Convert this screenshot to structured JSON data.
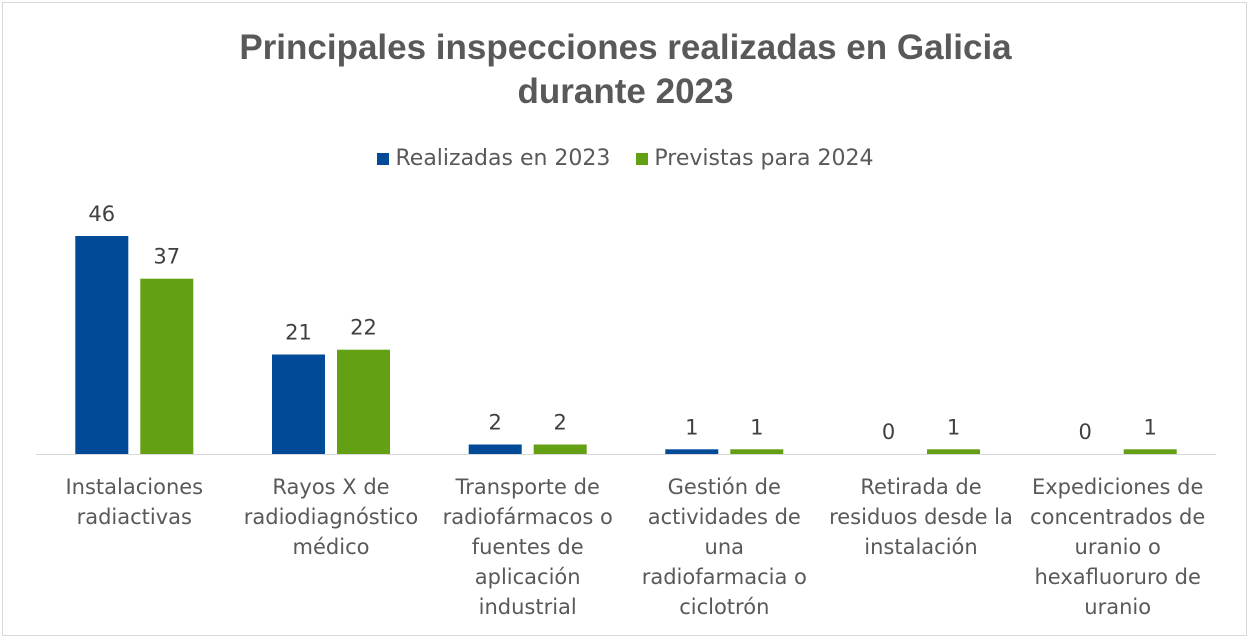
{
  "chart_data": {
    "type": "bar",
    "title": [
      "Principales inspecciones realizadas en Galicia",
      "durante 2023"
    ],
    "categories": [
      "Instalaciones radiactivas",
      "Rayos X de radiodiagnóstico médico",
      "Transporte de radiofármacos o fuentes de aplicación industrial",
      "Gestión de actividades de una radiofarmacia o ciclotrón",
      "Retirada de residuos desde la instalación",
      "Expediciones de concentrados de uranio o hexafluoruro de uranio"
    ],
    "category_lines": [
      [
        "Instalaciones",
        "radiactivas"
      ],
      [
        "Rayos X de",
        "radiodiagnóstico",
        "médico"
      ],
      [
        "Transporte de",
        "radiofármacos o",
        "fuentes de",
        "aplicación",
        "industrial"
      ],
      [
        "Gestión de",
        "actividades de",
        "una",
        "radiofarmacia o",
        "ciclotrón"
      ],
      [
        "Retirada de",
        "residuos desde la",
        "instalación"
      ],
      [
        "Expediciones de",
        "concentrados de",
        "uranio o",
        "hexafluoruro de",
        "uranio"
      ]
    ],
    "series": [
      {
        "name": "Realizadas en 2023",
        "color": "#004A97",
        "values": [
          46,
          21,
          2,
          1,
          0,
          0
        ]
      },
      {
        "name": "Previstas para 2024",
        "color": "#64A014",
        "values": [
          37,
          22,
          2,
          1,
          1,
          1
        ]
      }
    ],
    "ylim": [
      0,
      46
    ],
    "legend_position": "top",
    "grid": false,
    "data_labels": true
  }
}
